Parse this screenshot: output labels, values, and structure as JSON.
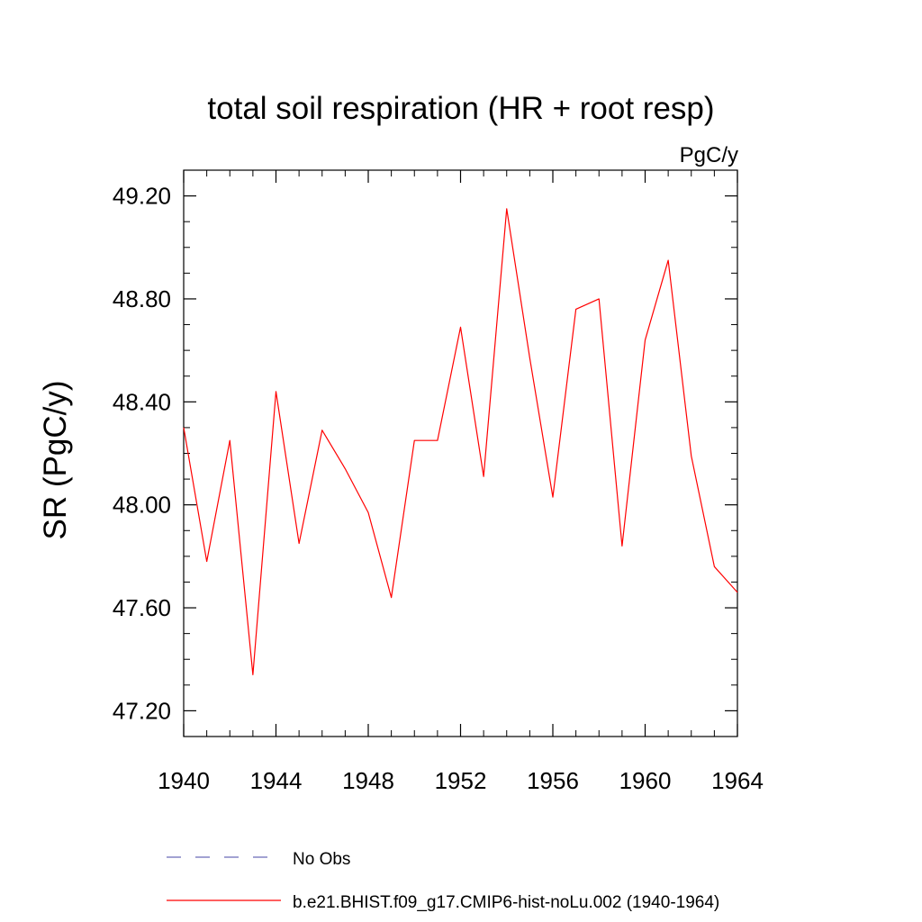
{
  "chart_data": {
    "type": "line",
    "title": "total soil respiration (HR + root resp)",
    "units_label": "PgC/y",
    "ylabel": "SR  (PgC/y)",
    "xlabel": "",
    "xlim": [
      1940,
      1964
    ],
    "ylim": [
      47.1,
      49.3
    ],
    "x_ticks": [
      "1940",
      "1944",
      "1948",
      "1952",
      "1956",
      "1960",
      "1964"
    ],
    "y_ticks": [
      "47.20",
      "47.60",
      "48.00",
      "48.40",
      "48.80",
      "49.20"
    ],
    "series": [
      {
        "name": "b.e21.BHIST.f09_g17.CMIP6-hist-noLu.002 (1940-1964)",
        "color": "#ff0000",
        "style": "solid",
        "x": [
          1940,
          1941,
          1942,
          1943,
          1944,
          1945,
          1946,
          1947,
          1948,
          1949,
          1950,
          1951,
          1952,
          1953,
          1954,
          1955,
          1956,
          1957,
          1958,
          1959,
          1960,
          1961,
          1962,
          1963,
          1964
        ],
        "y": [
          48.3,
          47.78,
          48.25,
          47.34,
          48.44,
          47.85,
          48.29,
          48.14,
          47.97,
          47.64,
          48.25,
          48.25,
          48.69,
          48.11,
          49.15,
          48.57,
          48.03,
          48.76,
          48.8,
          47.84,
          48.64,
          48.95,
          48.19,
          47.76,
          47.66
        ]
      }
    ],
    "legend": {
      "placement": "bottom",
      "entries": [
        {
          "label": "No Obs",
          "color": "#6a6ab8",
          "style": "dashed"
        },
        {
          "label": "b.e21.BHIST.f09_g17.CMIP6-hist-noLu.002 (1940-1964)",
          "color": "#ff0000",
          "style": "solid"
        }
      ]
    },
    "grid": false
  }
}
